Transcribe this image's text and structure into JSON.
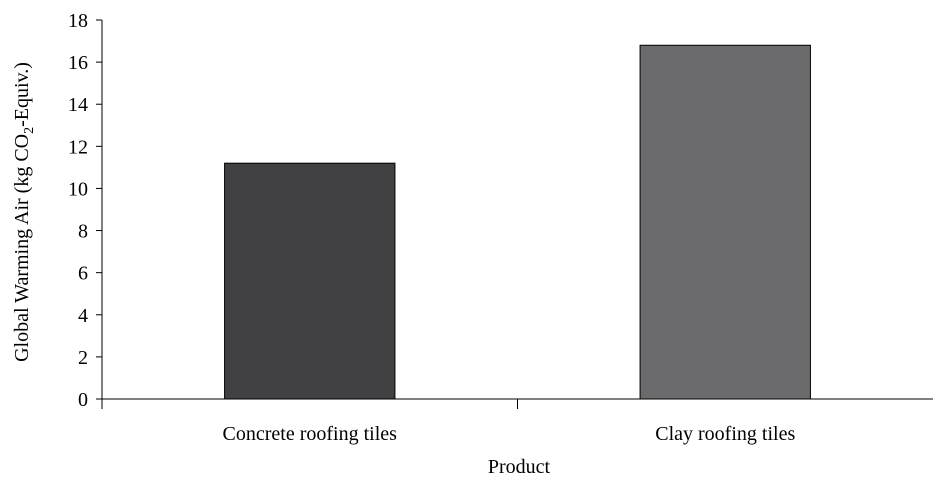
{
  "chart_data": {
    "type": "bar",
    "categories": [
      "Concrete roofing tiles",
      "Clay roofing tiles"
    ],
    "values": [
      11.2,
      16.8
    ],
    "colors": [
      "#414143",
      "#6b6b6e"
    ],
    "title": "",
    "xlabel": "Product",
    "ylabel": {
      "before": "Global Warming Air (kg CO",
      "subscript": "2",
      "after": "-Equiv.)"
    },
    "ylim": [
      0,
      18
    ],
    "yticks": [
      "0",
      "2",
      "4",
      "6",
      "8",
      "10",
      "12",
      "14",
      "16",
      "18"
    ],
    "grid": false,
    "legend": "none"
  }
}
